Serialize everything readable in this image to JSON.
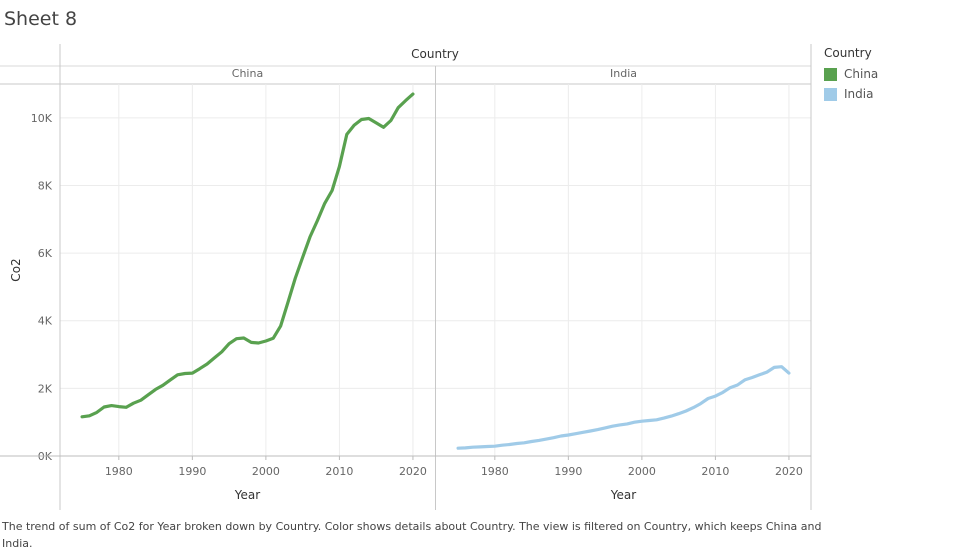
{
  "sheet_title": "Sheet 8",
  "caption": "The trend of sum of Co2 for Year broken down by Country.  Color shows details about Country. The view is filtered on Country, which keeps China and India.",
  "legend": {
    "title": "Country",
    "items": [
      {
        "label": "China",
        "color": "#59a14f"
      },
      {
        "label": "India",
        "color": "#a0cbe8"
      }
    ]
  },
  "chart_data": {
    "type": "line",
    "column_header": "Country",
    "panels": [
      "China",
      "India"
    ],
    "xlabel": "Year",
    "ylabel": "Co2",
    "xlim": [
      1972,
      2023
    ],
    "ylim": [
      0,
      11000
    ],
    "x_ticks": [
      1980,
      1990,
      2000,
      2010,
      2020
    ],
    "y_ticks": [
      0,
      2000,
      4000,
      6000,
      8000,
      10000
    ],
    "y_tick_labels": [
      "0K",
      "2K",
      "4K",
      "6K",
      "8K",
      "10K"
    ],
    "grid": true,
    "legend_position": "right",
    "series": [
      {
        "name": "China",
        "color": "#59a14f",
        "x": [
          1975,
          1976,
          1977,
          1978,
          1979,
          1980,
          1981,
          1982,
          1983,
          1984,
          1985,
          1986,
          1987,
          1988,
          1989,
          1990,
          1991,
          1992,
          1993,
          1994,
          1995,
          1996,
          1997,
          1998,
          1999,
          2000,
          2001,
          2002,
          2003,
          2004,
          2005,
          2006,
          2007,
          2008,
          2009,
          2010,
          2011,
          2012,
          2013,
          2014,
          2015,
          2016,
          2017,
          2018,
          2019,
          2020
        ],
        "values": [
          1160,
          1190,
          1290,
          1450,
          1490,
          1460,
          1440,
          1560,
          1650,
          1810,
          1970,
          2090,
          2250,
          2400,
          2440,
          2450,
          2580,
          2720,
          2900,
          3080,
          3320,
          3470,
          3490,
          3360,
          3340,
          3400,
          3480,
          3840,
          4540,
          5260,
          5870,
          6480,
          6960,
          7470,
          7850,
          8560,
          9510,
          9780,
          9950,
          9980,
          9850,
          9720,
          9920,
          10300,
          10510,
          10700
        ]
      },
      {
        "name": "India",
        "color": "#a0cbe8",
        "x": [
          1975,
          1976,
          1977,
          1978,
          1979,
          1980,
          1981,
          1982,
          1983,
          1984,
          1985,
          1986,
          1987,
          1988,
          1989,
          1990,
          1991,
          1992,
          1993,
          1994,
          1995,
          1996,
          1997,
          1998,
          1999,
          2000,
          2001,
          2002,
          2003,
          2004,
          2005,
          2006,
          2007,
          2008,
          2009,
          2010,
          2011,
          2012,
          2013,
          2014,
          2015,
          2016,
          2017,
          2018,
          2019,
          2020
        ],
        "values": [
          230,
          240,
          260,
          270,
          280,
          290,
          320,
          340,
          370,
          390,
          430,
          460,
          500,
          540,
          590,
          620,
          660,
          700,
          740,
          780,
          830,
          880,
          920,
          950,
          1000,
          1030,
          1050,
          1070,
          1120,
          1180,
          1250,
          1330,
          1430,
          1550,
          1700,
          1770,
          1880,
          2020,
          2100,
          2250,
          2320,
          2400,
          2480,
          2620,
          2640,
          2450
        ]
      }
    ]
  }
}
